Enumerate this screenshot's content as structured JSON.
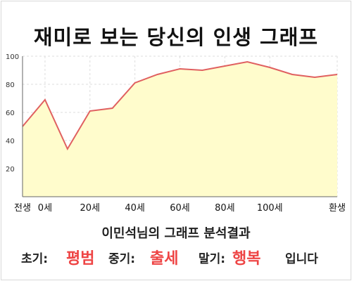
{
  "title": "재미로 보는 당신의 인생 그래프",
  "chart_data": {
    "type": "area",
    "x": [
      0,
      1,
      2,
      3,
      4,
      5,
      6,
      7,
      8,
      9,
      10,
      11,
      12,
      13,
      14
    ],
    "values": [
      50,
      69,
      34,
      61,
      63,
      81,
      87,
      91,
      90,
      93,
      96,
      92,
      87,
      85,
      87
    ],
    "xticks": [
      {
        "x": 0,
        "label": "전생"
      },
      {
        "x": 1,
        "label": "0세"
      },
      {
        "x": 3,
        "label": "20세"
      },
      {
        "x": 5,
        "label": "40세"
      },
      {
        "x": 7,
        "label": "60세"
      },
      {
        "x": 9,
        "label": "80세"
      },
      {
        "x": 11,
        "label": "100세"
      },
      {
        "x": 14,
        "label": "환생"
      }
    ],
    "yticks": [
      20,
      40,
      60,
      80,
      100
    ],
    "ylim": [
      0,
      100
    ],
    "grid": true,
    "colors": {
      "line": "#e06060",
      "fill": "#fffccc",
      "grid": "#dddddd",
      "axis": "#666666"
    }
  },
  "caption": "이민석님의 그래프 분석결과",
  "result": {
    "early_label": "초기:",
    "early_value": "평범",
    "middle_label": "중기:",
    "middle_value": "출세",
    "late_label": "말기:",
    "late_value": "행복",
    "suffix": "입니다"
  }
}
